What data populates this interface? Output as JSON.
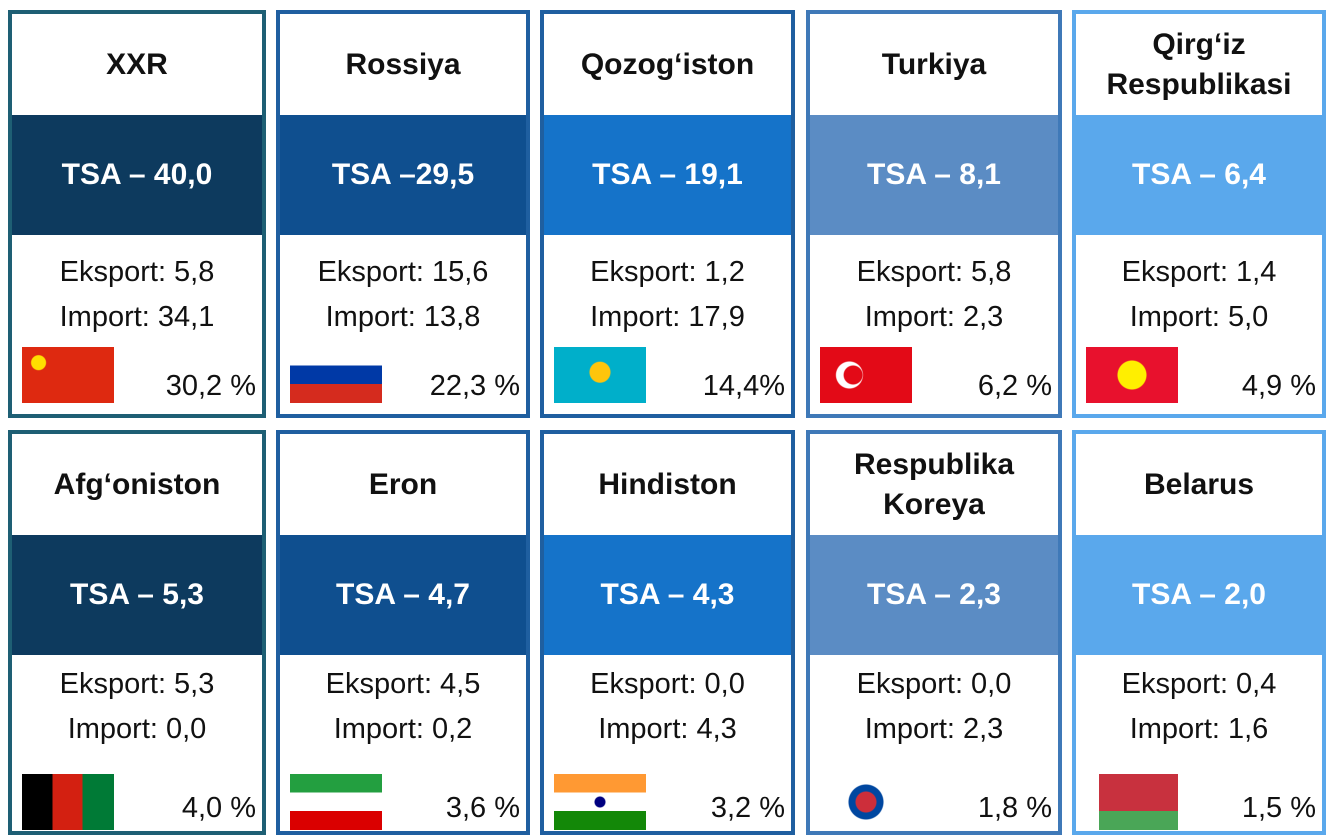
{
  "cards": [
    {
      "title": [
        "XXR"
      ],
      "tsa": "TSA – 40,0",
      "export": "Eksport: 5,8",
      "import": "Import: 34,1",
      "share": "30,2 %"
    },
    {
      "title": [
        "Rossiya"
      ],
      "tsa": "TSA –29,5",
      "export": "Eksport: 15,6",
      "import": "Import: 13,8",
      "share": "22,3 %"
    },
    {
      "title": [
        "Qozog‘iston"
      ],
      "tsa": "TSA – 19,1",
      "export": "Eksport: 1,2",
      "import": "Import: 17,9",
      "share": "14,4%"
    },
    {
      "title": [
        "Turkiya"
      ],
      "tsa": "TSA – 8,1",
      "export": "Eksport: 5,8",
      "import": "Import: 2,3",
      "share": "6,2 %"
    },
    {
      "title": [
        "Qirg‘iz",
        "Respublikasi"
      ],
      "tsa": "TSA – 6,4",
      "export": "Eksport: 1,4",
      "import": "Import: 5,0",
      "share": "4,9 %"
    },
    {
      "title": [
        "Afg‘oniston"
      ],
      "tsa": "TSA – 5,3",
      "export": "Eksport: 5,3",
      "import": "Import: 0,0",
      "share": "4,0 %"
    },
    {
      "title": [
        "Eron"
      ],
      "tsa": "TSA – 4,7",
      "export": "Eksport: 4,5",
      "import": "Import: 0,2",
      "share": "3,6 %"
    },
    {
      "title": [
        "Hindiston"
      ],
      "tsa": "TSA – 4,3",
      "export": "Eksport: 0,0",
      "import": "Import: 4,3",
      "share": "3,2 %"
    },
    {
      "title": [
        "Respublika",
        "Koreya"
      ],
      "tsa": "TSA – 2,3",
      "export": "Eksport: 0,0",
      "import": "Import: 2,3",
      "share": "1,8 %"
    },
    {
      "title": [
        "Belarus"
      ],
      "tsa": "TSA – 2,0",
      "export": "Eksport: 0,4",
      "import": "Import: 1,6",
      "share": "1,5 %"
    }
  ]
}
